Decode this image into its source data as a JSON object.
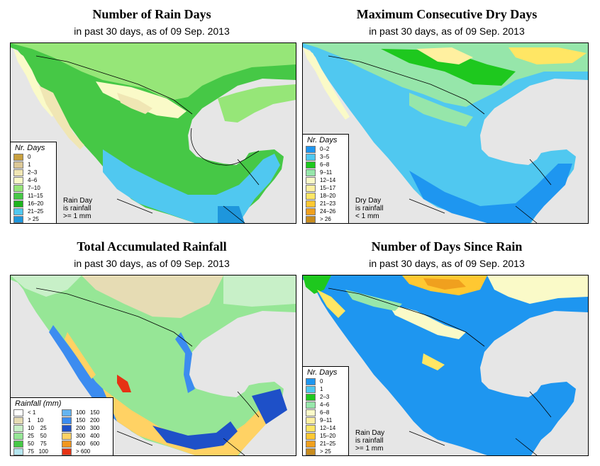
{
  "panels": [
    {
      "title": "Number of Rain Days",
      "subtitle": "in past 30 days, as of  09 Sep. 2013",
      "legend_title": "Nr. Days",
      "legend": [
        {
          "label": "0",
          "color": "#c8a040"
        },
        {
          "label": "1",
          "color": "#dcc896"
        },
        {
          "label": "2–3",
          "color": "#f0e6b4"
        },
        {
          "label": "4–6",
          "color": "#fafac8"
        },
        {
          "label": "7–10",
          "color": "#96e678"
        },
        {
          "label": "11–15",
          "color": "#46c846"
        },
        {
          "label": "16–20",
          "color": "#1eb41e"
        },
        {
          "label": "21–25",
          "color": "#50c8f0"
        },
        {
          "label": "> 25",
          "color": "#1e96dc"
        }
      ],
      "note": [
        "Rain Day",
        "is rainfall",
        ">= 1 mm"
      ]
    },
    {
      "title": "Maximum Consecutive Dry Days",
      "subtitle": "in past 30 days, as of  09 Sep. 2013",
      "legend_title": "Nr. Days",
      "legend": [
        {
          "label": "0–2",
          "color": "#1e96f0"
        },
        {
          "label": "3–5",
          "color": "#50c8f0"
        },
        {
          "label": "6–8",
          "color": "#1ec81e"
        },
        {
          "label": "9–11",
          "color": "#96e6aa"
        },
        {
          "label": "12–14",
          "color": "#fafac8"
        },
        {
          "label": "15–17",
          "color": "#fff0a0"
        },
        {
          "label": "18–20",
          "color": "#ffe664"
        },
        {
          "label": "21–23",
          "color": "#ffc832"
        },
        {
          "label": "24–26",
          "color": "#f0a01e"
        },
        {
          "label": "> 26",
          "color": "#c88c1e"
        }
      ],
      "note": [
        "Dry Day",
        "is rainfall",
        "< 1 mm"
      ]
    },
    {
      "title": "Total Accumulated Rainfall",
      "subtitle": "in past 30 days, as of  09 Sep. 2013",
      "legend_title": "Rainfall (mm)",
      "legend": [
        {
          "label": "< 1",
          "color": "#ffffff"
        },
        {
          "label": "1    10",
          "color": "#e6dcb4"
        },
        {
          "label": "10    25",
          "color": "#c8f0c8"
        },
        {
          "label": "25    50",
          "color": "#96e696"
        },
        {
          "label": "50    75",
          "color": "#46c846"
        },
        {
          "label": "75   100",
          "color": "#b4e6f0"
        },
        {
          "label": "100   150",
          "color": "#64b4f0"
        },
        {
          "label": "150   200",
          "color": "#3c8cf0"
        },
        {
          "label": "200   300",
          "color": "#1e50c8"
        },
        {
          "label": "300   400",
          "color": "#ffd264"
        },
        {
          "label": "400   600",
          "color": "#f0961e"
        },
        {
          "label": "> 600",
          "color": "#e63214"
        }
      ],
      "note": []
    },
    {
      "title": "Number of Days Since Rain",
      "subtitle": "in past 30 days, as of  09 Sep. 2013",
      "legend_title": "Nr. Days",
      "legend": [
        {
          "label": "0",
          "color": "#1e96f0"
        },
        {
          "label": "1",
          "color": "#50c8f0"
        },
        {
          "label": "2–3",
          "color": "#1ec81e"
        },
        {
          "label": "4–6",
          "color": "#96e6aa"
        },
        {
          "label": "6–8",
          "color": "#fafac8"
        },
        {
          "label": "9–11",
          "color": "#fff0a0"
        },
        {
          "label": "12–14",
          "color": "#ffe664"
        },
        {
          "label": "15–20",
          "color": "#ffc832"
        },
        {
          "label": "21–25",
          "color": "#f0a01e"
        },
        {
          "label": "> 25",
          "color": "#c88c1e"
        }
      ],
      "note": [
        "Rain Day",
        "is rainfall",
        ">= 1 mm"
      ]
    }
  ]
}
